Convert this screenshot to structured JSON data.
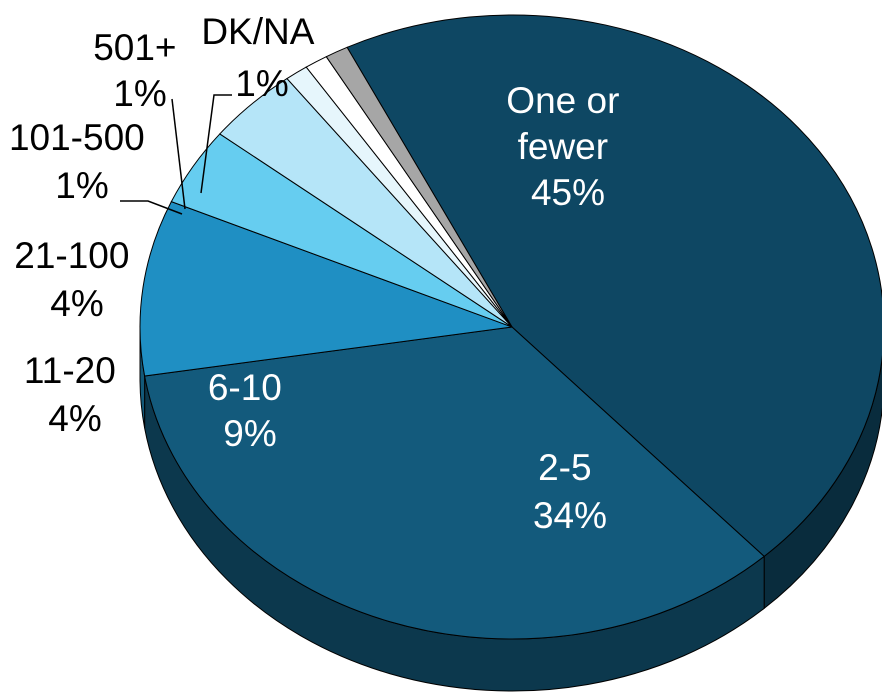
{
  "chart_data": {
    "type": "pie",
    "title": "",
    "slices": [
      {
        "label": "One or fewer",
        "value": 45,
        "display": "45%",
        "color": "#0e4763"
      },
      {
        "label": "2-5",
        "value": 34,
        "display": "34%",
        "color": "#135a7c"
      },
      {
        "label": "6-10",
        "value": 9,
        "display": "9%",
        "color": "#1f8fc3"
      },
      {
        "label": "11-20",
        "value": 4,
        "display": "4%",
        "color": "#66cdf0"
      },
      {
        "label": "21-100",
        "value": 4,
        "display": "4%",
        "color": "#b5e5f8"
      },
      {
        "label": "101-500",
        "value": 1,
        "display": "1%",
        "color": "#e6f6fc"
      },
      {
        "label": "501+",
        "value": 1,
        "display": "1%",
        "color": "#ffffff"
      },
      {
        "label": "DK/NA",
        "value": 1,
        "display": "1%",
        "color": "#a6a6a6"
      }
    ],
    "label_lines": {
      "one_or_fewer": [
        "One or",
        "fewer",
        "45%"
      ],
      "two_five": [
        "2-5",
        "34%"
      ],
      "six_ten": [
        "6-10",
        "9%"
      ],
      "eleven_twenty": [
        "11-20",
        "4%"
      ],
      "twentyone_hundred": [
        "21-100",
        "4%"
      ],
      "hundredone_fivehundred": [
        "101-500",
        "1%"
      ],
      "fiveoneplus": [
        "501+",
        "1%"
      ],
      "dkna": [
        "DK/NA",
        "1%"
      ]
    }
  }
}
